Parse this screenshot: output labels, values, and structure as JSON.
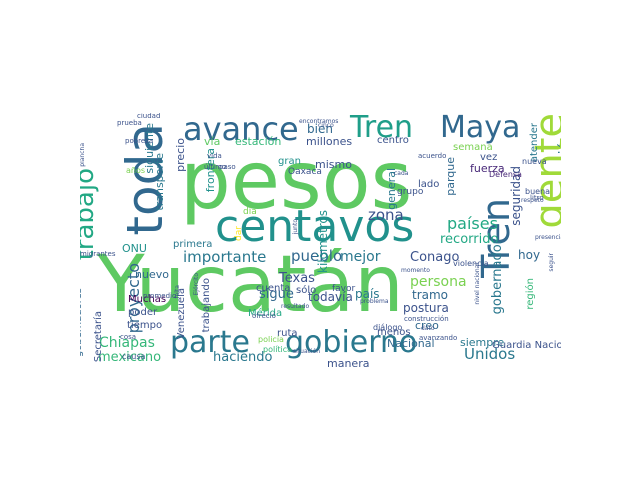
{
  "cloud": {
    "words": [
      {
        "text": "Yucatán",
        "color": "#5ec962"
      },
      {
        "text": "pesos",
        "color": "#5ec962"
      },
      {
        "text": "centavos",
        "color": "#21918c"
      },
      {
        "text": "toda",
        "color": "#31688e"
      },
      {
        "text": "gente",
        "color": "#a0da39"
      },
      {
        "text": "parte",
        "color": "#2a788e"
      },
      {
        "text": "gobierno",
        "color": "#2a788e"
      },
      {
        "text": "Tren",
        "color": "#31688e"
      },
      {
        "text": "Tren",
        "color": "#1f9e89"
      },
      {
        "text": "Maya",
        "color": "#31688e"
      },
      {
        "text": "avance",
        "color": "#31688e"
      },
      {
        "text": "trabajo",
        "color": "#22a884"
      },
      {
        "text": "proyecto",
        "color": "#31688e"
      },
      {
        "text": "importante",
        "color": "#2a788e"
      },
      {
        "text": "Chiapas",
        "color": "#35b779"
      },
      {
        "text": "mexicano",
        "color": "#35b779"
      },
      {
        "text": "haciendo",
        "color": "#2a788e"
      },
      {
        "text": "pueblo",
        "color": "#31688e"
      },
      {
        "text": "mejor",
        "color": "#2a788e"
      },
      {
        "text": "Conago",
        "color": "#3b528b"
      },
      {
        "text": "persona",
        "color": "#7ad151"
      },
      {
        "text": "países",
        "color": "#22a884"
      },
      {
        "text": "zona",
        "color": "#3b528b"
      },
      {
        "text": "Texas",
        "color": "#3b528b"
      },
      {
        "text": "sigue",
        "color": "#31688e"
      },
      {
        "text": "Unidos",
        "color": "#2a788e"
      },
      {
        "text": "reunión",
        "color": "#2a788e"
      },
      {
        "text": "bien",
        "color": "#31688e"
      },
      {
        "text": "vía",
        "color": "#5ec962"
      },
      {
        "text": "estación",
        "color": "#35b779"
      },
      {
        "text": "millones",
        "color": "#3b528b"
      },
      {
        "text": "centro",
        "color": "#3b528b"
      },
      {
        "text": "gran",
        "color": "#21918c"
      },
      {
        "text": "kilómetros",
        "color": "#21918c"
      },
      {
        "text": "mismo",
        "color": "#3b528b"
      },
      {
        "text": "precio",
        "color": "#3b528b"
      },
      {
        "text": "transporte",
        "color": "#2a788e"
      },
      {
        "text": "siguiente",
        "color": "#2a788e"
      },
      {
        "text": "frontera",
        "color": "#21918c"
      },
      {
        "text": "general",
        "color": "#2a788e"
      },
      {
        "text": "parque",
        "color": "#31688e"
      },
      {
        "text": "fuerza",
        "color": "#482878"
      },
      {
        "text": "recorrido",
        "color": "#22a884"
      },
      {
        "text": "seguridad",
        "color": "#3b528b"
      },
      {
        "text": "gobernador",
        "color": "#2a788e"
      },
      {
        "text": "hoy",
        "color": "#31688e"
      },
      {
        "text": "tramo",
        "color": "#31688e"
      },
      {
        "text": "país",
        "color": "#2a788e"
      },
      {
        "text": "postura",
        "color": "#3b528b"
      },
      {
        "text": "creo",
        "color": "#31688e"
      },
      {
        "text": "Nacional",
        "color": "#31688e"
      },
      {
        "text": "siempre",
        "color": "#2a788e"
      },
      {
        "text": "programa",
        "color": "#2a788e"
      },
      {
        "text": "región",
        "color": "#35b779"
      },
      {
        "text": "semana",
        "color": "#7ad151"
      },
      {
        "text": "vez",
        "color": "#3b528b"
      },
      {
        "text": "atender",
        "color": "#2a788e"
      },
      {
        "text": "lado",
        "color": "#3b528b"
      },
      {
        "text": "primera",
        "color": "#2a788e"
      },
      {
        "text": "nuevo",
        "color": "#31688e"
      },
      {
        "text": "ONU",
        "color": "#21918c"
      },
      {
        "text": "Secretaría",
        "color": "#3b528b"
      },
      {
        "text": "gobernadores",
        "color": "#31688e"
      },
      {
        "text": "Muchas",
        "color": "#440154"
      },
      {
        "text": "poder",
        "color": "#3b528b"
      },
      {
        "text": "tiempo",
        "color": "#3b528b"
      },
      {
        "text": "Venezuela",
        "color": "#3b528b"
      },
      {
        "text": "trabajando",
        "color": "#3b528b"
      },
      {
        "text": "Mérida",
        "color": "#22a884"
      },
      {
        "text": "cuenta",
        "color": "#3b528b"
      },
      {
        "text": "sólo",
        "color": "#3b528b"
      },
      {
        "text": "favor",
        "color": "#3b528b"
      },
      {
        "text": "ruta",
        "color": "#3b528b"
      },
      {
        "text": "menos",
        "color": "#3b528b"
      },
      {
        "text": "manera",
        "color": "#3b528b"
      },
      {
        "text": "grupo",
        "color": "#3b528b"
      },
      {
        "text": "Guardia Nacional",
        "color": "#3b528b"
      },
      {
        "text": "Oaxaca",
        "color": "#3b528b"
      },
      {
        "text": "día",
        "color": "#7ad151"
      },
      {
        "text": "dar",
        "color": "#fde725"
      },
      {
        "text": "Defensa",
        "color": "#482878"
      },
      {
        "text": "buena",
        "color": "#3b528b"
      },
      {
        "text": "nueva",
        "color": "#3b528b"
      },
      {
        "text": "violencia",
        "color": "#3b528b"
      },
      {
        "text": "construcción",
        "color": "#3b528b"
      },
      {
        "text": "diálogo",
        "color": "#3b528b"
      },
      {
        "text": "avanzando",
        "color": "#3b528b"
      },
      {
        "text": "policía",
        "color": "#7ad151"
      },
      {
        "text": "política",
        "color": "#35b779"
      },
      {
        "text": "causa",
        "color": "#3b528b"
      },
      {
        "text": "cosa",
        "color": "#3b528b"
      },
      {
        "text": "promedio",
        "color": "#3b528b"
      },
      {
        "text": "último",
        "color": "#3b528b"
      },
      {
        "text": "vida",
        "color": "#3b528b"
      },
      {
        "text": "paso",
        "color": "#3b528b"
      },
      {
        "text": "años",
        "color": "#7ad151"
      },
      {
        "text": "pobreza",
        "color": "#3b528b"
      },
      {
        "text": "prueba",
        "color": "#3b528b"
      },
      {
        "text": "ciudad",
        "color": "#3b528b"
      },
      {
        "text": "encontramos",
        "color": "#3b528b"
      },
      {
        "text": "cinco",
        "color": "#3b528b"
      },
      {
        "text": "acuerdo",
        "color": "#3b528b"
      },
      {
        "text": "problema",
        "color": "#3b528b"
      },
      {
        "text": "resultado",
        "color": "#3b528b"
      },
      {
        "text": "ofreció",
        "color": "#3b528b"
      },
      {
        "text": "plancha",
        "color": "#3b528b"
      },
      {
        "text": "migrantes",
        "color": "#3b528b"
      },
      {
        "text": "sistema",
        "color": "#3b528b"
      },
      {
        "text": "cada",
        "color": "#3b528b"
      },
      {
        "text": "litro",
        "color": "#3b528b"
      },
      {
        "text": "presencia",
        "color": "#3b528b"
      },
      {
        "text": "seguir",
        "color": "#3b528b"
      },
      {
        "text": "nivel nacional",
        "color": "#3b528b"
      },
      {
        "text": "Ejército",
        "color": "#3b528b"
      },
      {
        "text": "junto",
        "color": "#3b528b"
      },
      {
        "text": "dato",
        "color": "#3b528b"
      },
      {
        "text": "falta",
        "color": "#3b528b"
      },
      {
        "text": "momento",
        "color": "#3b528b"
      },
      {
        "text": "situación",
        "color": "#3b528b"
      },
      {
        "text": "respeto",
        "color": "#3b528b"
      },
      {
        "text": "todavía",
        "color": "#3b528b"
      },
      {
        "text": "solamente",
        "color": "#3b528b"
      },
      {
        "text": "ir",
        "color": "#3b528b"
      }
    ]
  }
}
